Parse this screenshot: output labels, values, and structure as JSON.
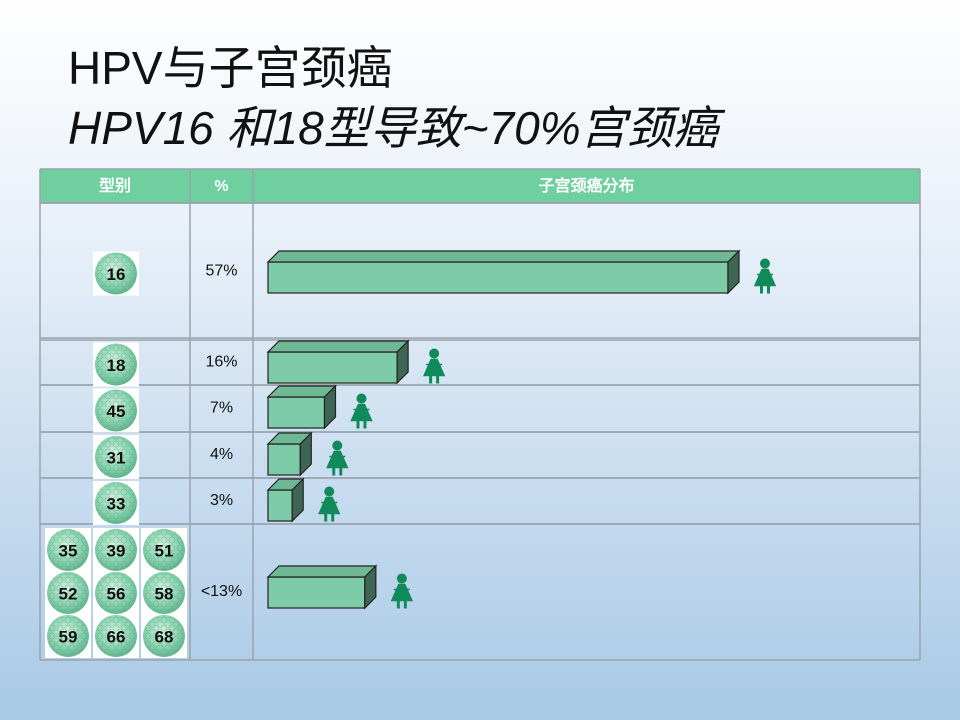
{
  "header": {
    "title": "HPV与子宫颈癌",
    "subtitle": "HPV16 和18型导致~70%宫颈癌"
  },
  "table": {
    "columns": [
      "型别",
      "%",
      "子宫颈癌分布"
    ],
    "rows": [
      {
        "types": [
          "16"
        ],
        "percent": "57%",
        "value": 57
      },
      {
        "types": [
          "18"
        ],
        "percent": "16%",
        "value": 16
      },
      {
        "types": [
          "45"
        ],
        "percent": "7%",
        "value": 7
      },
      {
        "types": [
          "31"
        ],
        "percent": "4%",
        "value": 4
      },
      {
        "types": [
          "33"
        ],
        "percent": "3%",
        "value": 3
      },
      {
        "types": [
          "35",
          "39",
          "51",
          "52",
          "56",
          "58",
          "59",
          "66",
          "68"
        ],
        "percent": "<13%",
        "value": 12
      }
    ]
  }
}
